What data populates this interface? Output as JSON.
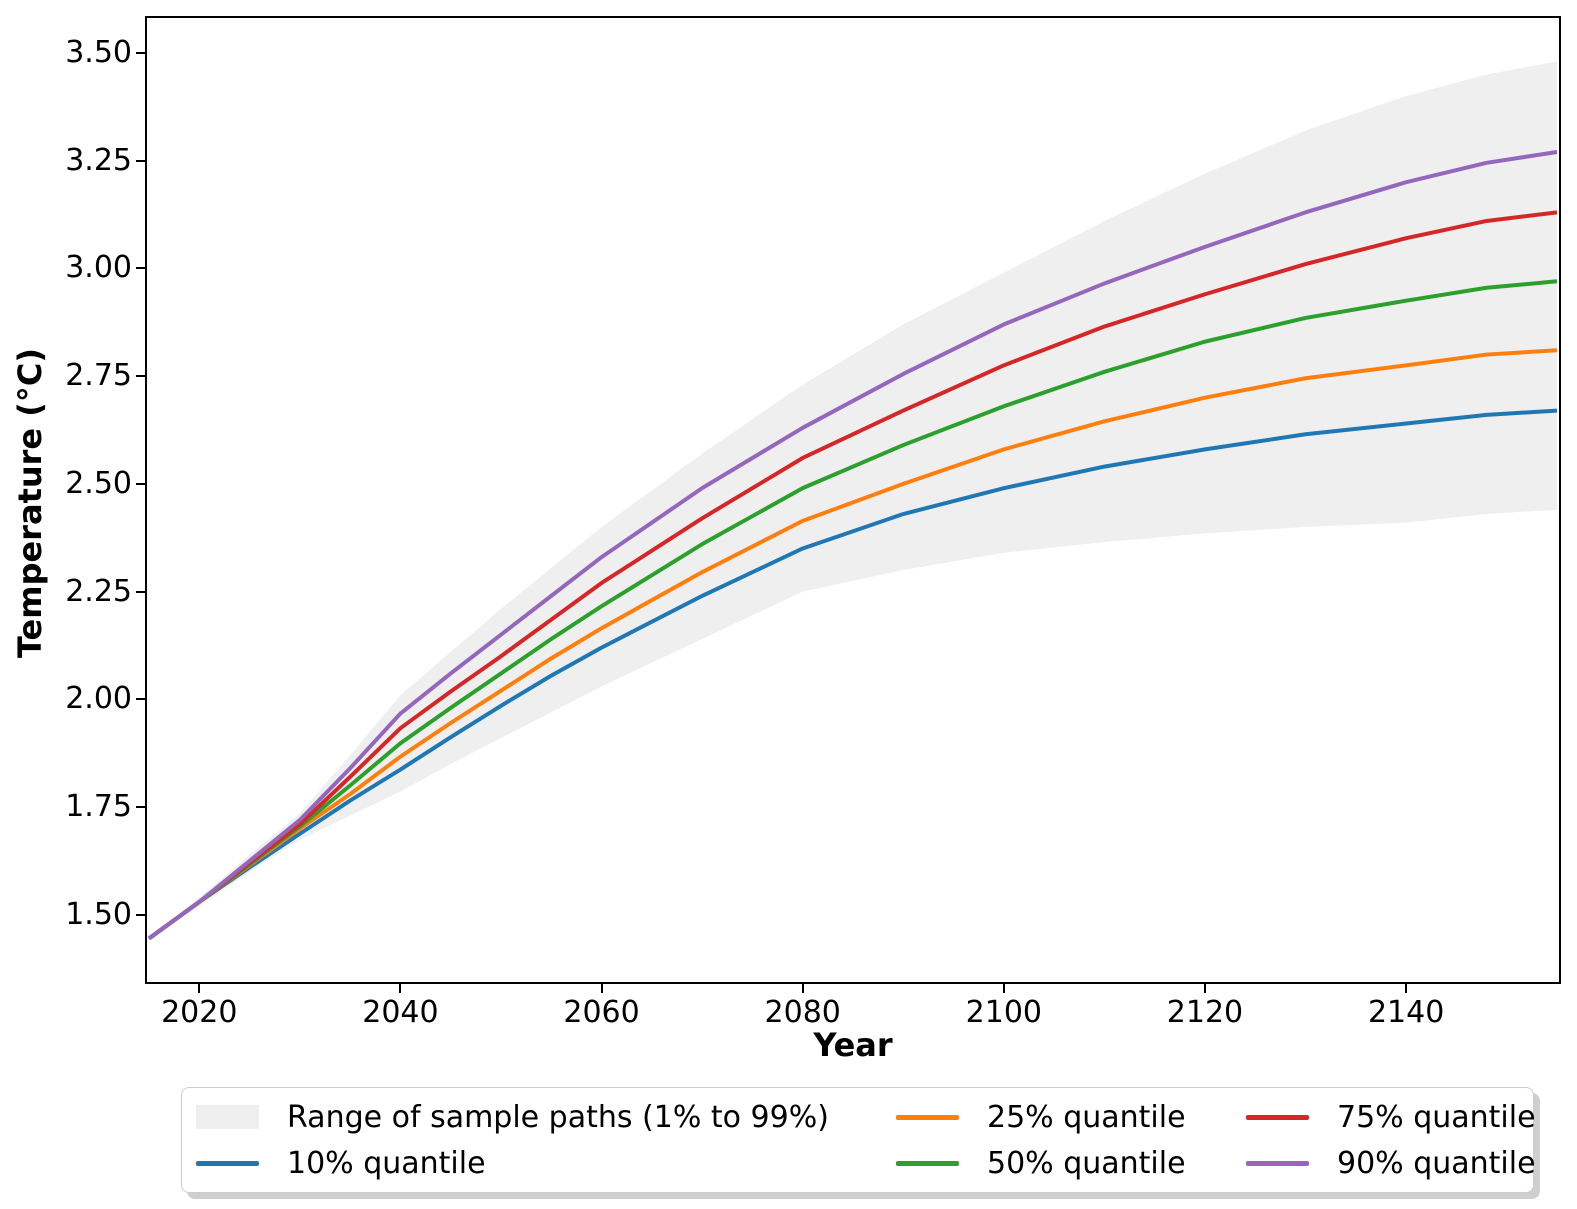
{
  "axes": {
    "xlabel": "Year",
    "ylabel": "Temperature (°C)",
    "xticks": [
      {
        "value": 2020,
        "label": "2020"
      },
      {
        "value": 2040,
        "label": "2040"
      },
      {
        "value": 2060,
        "label": "2060"
      },
      {
        "value": 2080,
        "label": "2080"
      },
      {
        "value": 2100,
        "label": "2100"
      },
      {
        "value": 2120,
        "label": "2120"
      },
      {
        "value": 2140,
        "label": "2140"
      }
    ],
    "yticks": [
      {
        "value": 1.5,
        "label": "1.50"
      },
      {
        "value": 1.75,
        "label": "1.75"
      },
      {
        "value": 2.0,
        "label": "2.00"
      },
      {
        "value": 2.25,
        "label": "2.25"
      },
      {
        "value": 2.5,
        "label": "2.50"
      },
      {
        "value": 2.75,
        "label": "2.75"
      },
      {
        "value": 3.0,
        "label": "3.00"
      },
      {
        "value": 3.25,
        "label": "3.25"
      },
      {
        "value": 3.5,
        "label": "3.50"
      }
    ]
  },
  "legend": {
    "items": [
      {
        "label": "Range of sample paths (1% to 99%)",
        "type": "patch",
        "color": "#efefef"
      },
      {
        "label": "10% quantile",
        "type": "line",
        "color": "#1f77b4"
      },
      {
        "label": "25% quantile",
        "type": "line",
        "color": "#ff7f0e"
      },
      {
        "label": "50% quantile",
        "type": "line",
        "color": "#2ca02c"
      },
      {
        "label": "75% quantile",
        "type": "line",
        "color": "#d62728"
      },
      {
        "label": "90% quantile",
        "type": "line",
        "color": "#9467bd"
      }
    ]
  },
  "chart_data": {
    "type": "line",
    "title": "",
    "xlabel": "Year",
    "ylabel": "Temperature (°C)",
    "xlim": [
      2014.8,
      2155.2
    ],
    "ylim": [
      1.344,
      3.581
    ],
    "grid": false,
    "legend_position": "bottom",
    "x": [
      2015,
      2020,
      2025,
      2030,
      2035,
      2040,
      2045,
      2050,
      2055,
      2060,
      2070,
      2080,
      2090,
      2100,
      2110,
      2120,
      2130,
      2140,
      2148,
      2155
    ],
    "band": {
      "name": "Range of sample paths (1% to 99%)",
      "color": "#efefef",
      "upper": [
        1.445,
        1.54,
        1.64,
        1.735,
        1.87,
        2.01,
        2.11,
        2.21,
        2.305,
        2.4,
        2.57,
        2.73,
        2.87,
        2.99,
        3.11,
        3.22,
        3.32,
        3.4,
        3.45,
        3.48
      ],
      "lower": [
        1.445,
        1.52,
        1.6,
        1.674,
        1.73,
        1.786,
        1.85,
        1.91,
        1.97,
        2.03,
        2.14,
        2.25,
        2.3,
        2.34,
        2.365,
        2.385,
        2.4,
        2.41,
        2.43,
        2.44
      ]
    },
    "series": [
      {
        "name": "10% quantile",
        "color": "#1f77b4",
        "values": [
          1.445,
          1.53,
          1.61,
          1.688,
          1.765,
          1.837,
          1.912,
          1.985,
          2.055,
          2.12,
          2.24,
          2.35,
          2.43,
          2.49,
          2.54,
          2.58,
          2.615,
          2.64,
          2.66,
          2.67
        ]
      },
      {
        "name": "25% quantile",
        "color": "#ff7f0e",
        "values": [
          1.445,
          1.53,
          1.615,
          1.7,
          1.78,
          1.867,
          1.945,
          2.02,
          2.095,
          2.165,
          2.295,
          2.414,
          2.5,
          2.58,
          2.645,
          2.7,
          2.745,
          2.775,
          2.8,
          2.81
        ]
      },
      {
        "name": "50% quantile",
        "color": "#2ca02c",
        "values": [
          1.445,
          1.53,
          1.617,
          1.705,
          1.8,
          1.898,
          1.98,
          2.06,
          2.14,
          2.216,
          2.36,
          2.49,
          2.59,
          2.68,
          2.76,
          2.83,
          2.885,
          2.925,
          2.955,
          2.97
        ]
      },
      {
        "name": "75% quantile",
        "color": "#d62728",
        "values": [
          1.445,
          1.53,
          1.62,
          1.71,
          1.82,
          1.933,
          2.018,
          2.1,
          2.185,
          2.27,
          2.42,
          2.56,
          2.67,
          2.775,
          2.865,
          2.94,
          3.01,
          3.07,
          3.11,
          3.13
        ]
      },
      {
        "name": "90% quantile",
        "color": "#9467bd",
        "values": [
          1.445,
          1.53,
          1.625,
          1.72,
          1.84,
          1.967,
          2.06,
          2.15,
          2.24,
          2.33,
          2.49,
          2.63,
          2.755,
          2.87,
          2.965,
          3.05,
          3.13,
          3.2,
          3.245,
          3.27
        ]
      }
    ]
  }
}
